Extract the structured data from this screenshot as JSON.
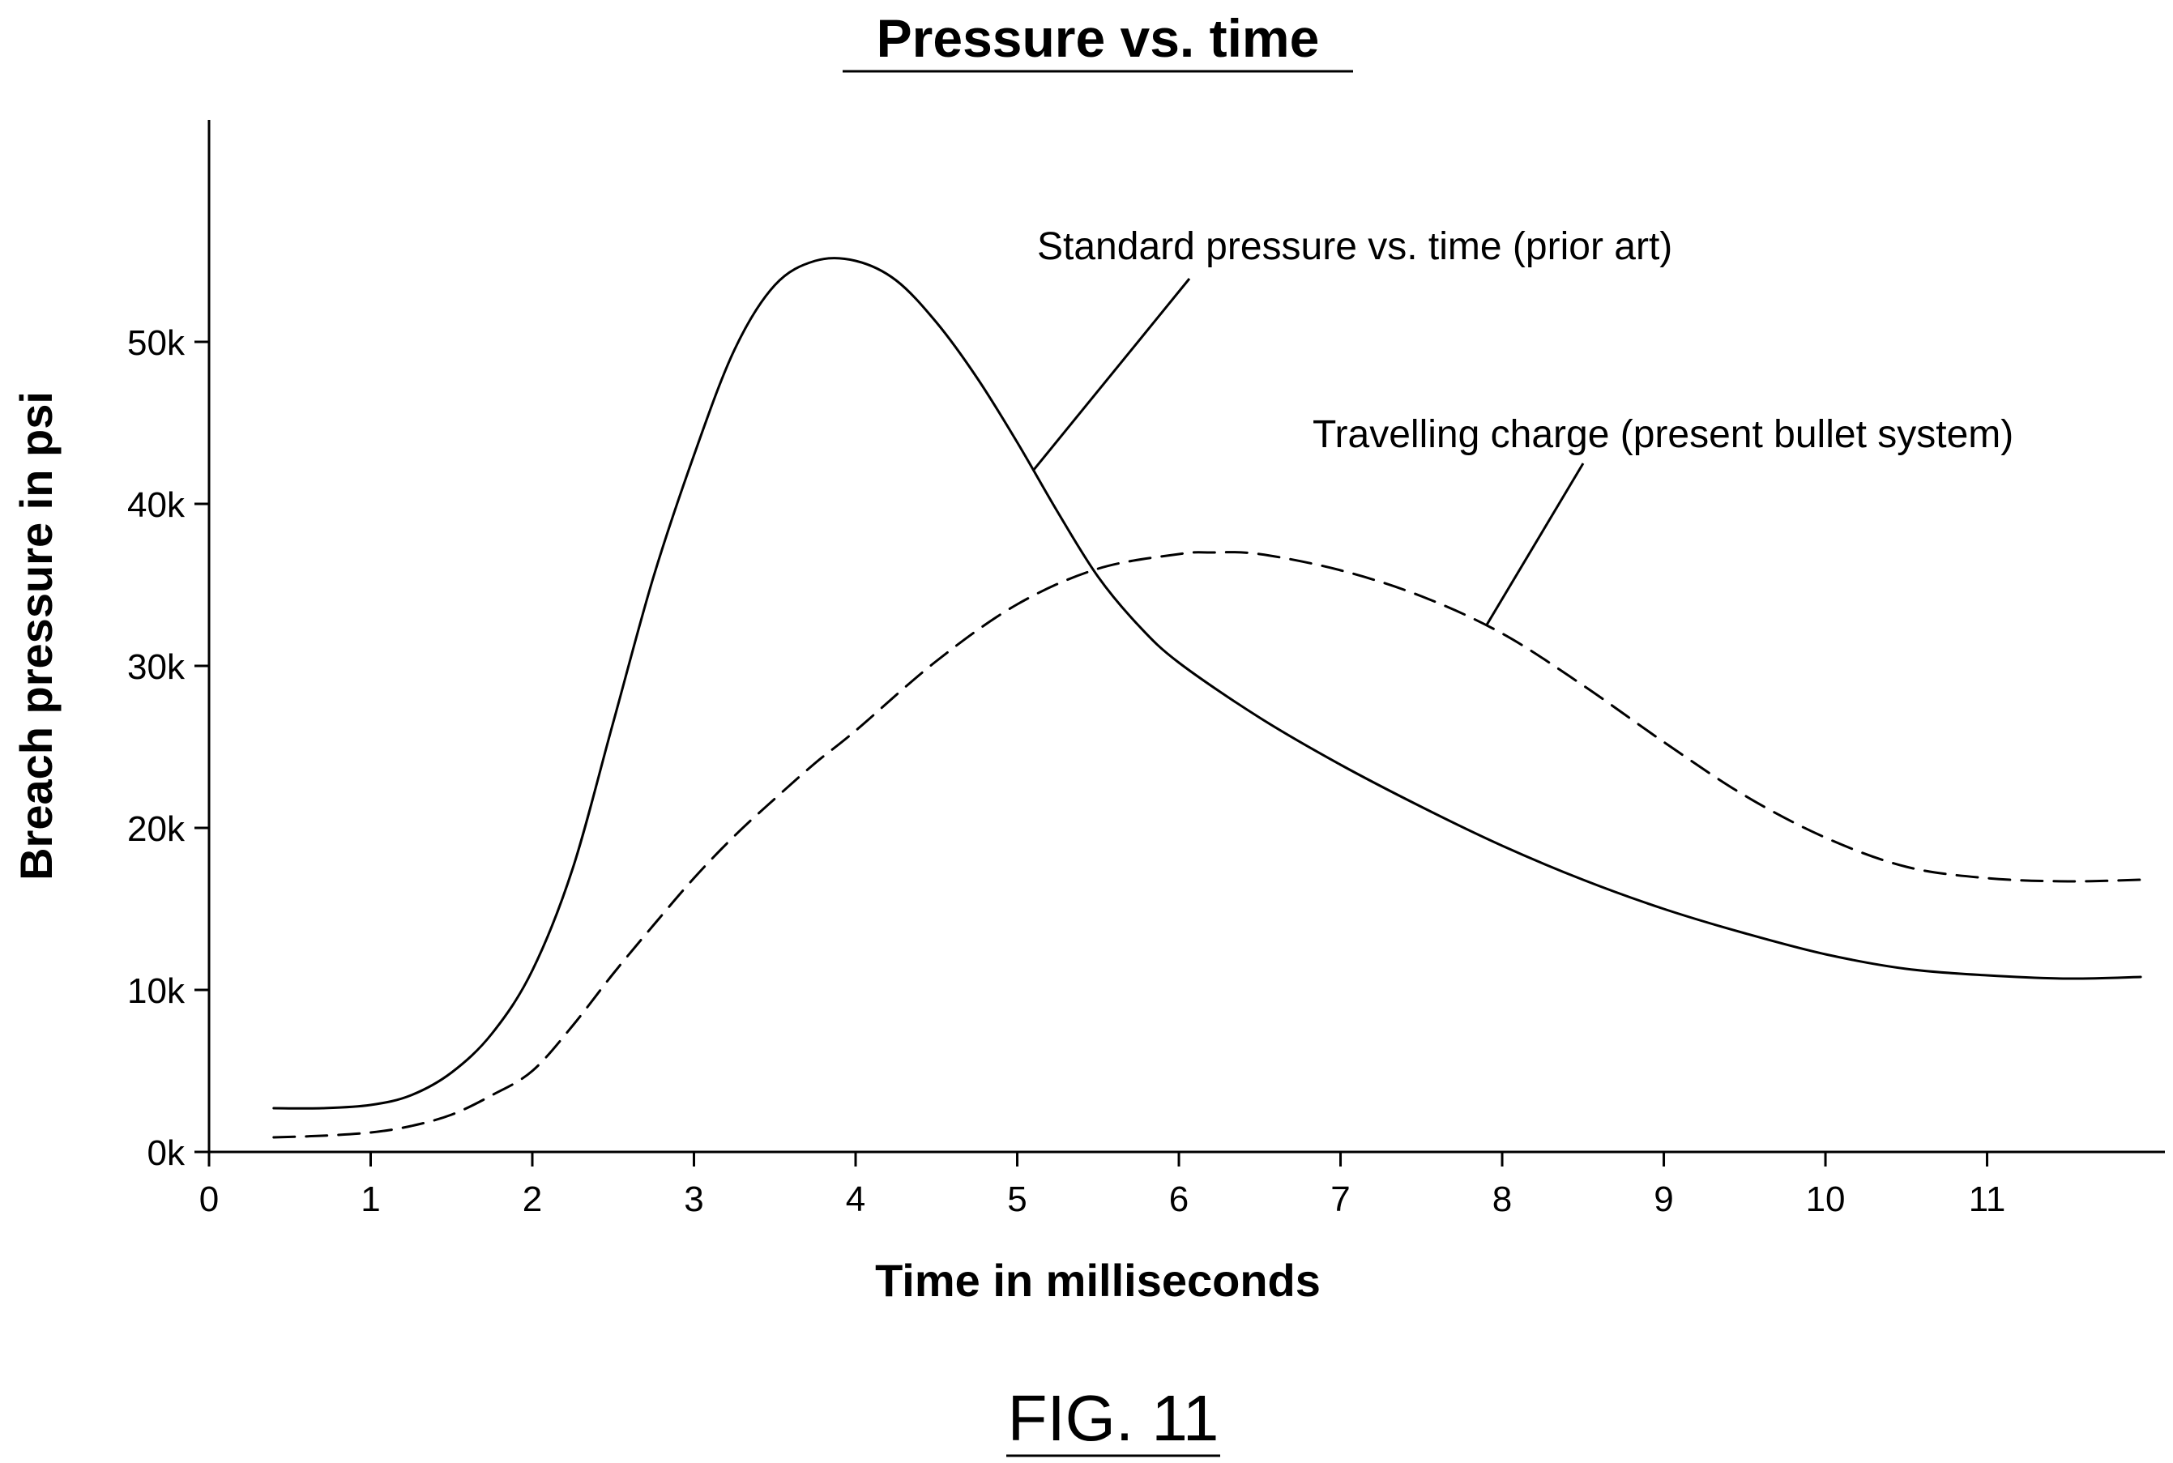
{
  "figure_label": "FIG. 11",
  "chart_data": {
    "type": "line",
    "title": "Pressure vs. time",
    "xlabel": "Time in milliseconds",
    "ylabel": "Breach pressure in psi",
    "xlim": [
      0,
      12.1
    ],
    "ylim": [
      0,
      63700
    ],
    "x_ticks": [
      0,
      1,
      2,
      3,
      4,
      5,
      6,
      7,
      8,
      9,
      10,
      11
    ],
    "x_tick_labels": [
      "0",
      "1",
      "2",
      "3",
      "4",
      "5",
      "6",
      "7",
      "8",
      "9",
      "10",
      "11"
    ],
    "y_ticks": [
      0,
      10000,
      20000,
      30000,
      40000,
      50000
    ],
    "y_tick_labels": [
      "0k",
      "10k",
      "20k",
      "30k",
      "40k",
      "50k"
    ],
    "grid": false,
    "series": [
      {
        "name": "Standard pressure vs. time (prior art)",
        "style": "solid",
        "color": "#000000",
        "x": [
          0.4,
          0.7,
          1.0,
          1.25,
          1.5,
          1.75,
          2.0,
          2.25,
          2.5,
          2.75,
          3.0,
          3.25,
          3.5,
          3.75,
          4.0,
          4.25,
          4.5,
          4.75,
          5.0,
          5.25,
          5.5,
          5.75,
          6.0,
          6.5,
          7.0,
          7.5,
          8.0,
          8.5,
          9.0,
          9.5,
          10.0,
          10.5,
          11.0,
          11.5,
          11.95
        ],
        "y": [
          2700,
          2700,
          2900,
          3500,
          4900,
          7300,
          11200,
          17500,
          26500,
          35500,
          43000,
          49500,
          53500,
          55000,
          55000,
          53800,
          51200,
          47800,
          43800,
          39500,
          35500,
          32500,
          30200,
          26800,
          23900,
          21300,
          18900,
          16800,
          15000,
          13500,
          12200,
          11300,
          10900,
          10700,
          10800
        ]
      },
      {
        "name": "Travelling charge (present bullet system)",
        "style": "dashed",
        "color": "#000000",
        "x": [
          0.4,
          0.7,
          1.0,
          1.25,
          1.5,
          1.75,
          2.0,
          2.25,
          2.5,
          2.75,
          3.0,
          3.25,
          3.5,
          3.75,
          4.0,
          4.5,
          5.0,
          5.5,
          6.0,
          6.2,
          6.5,
          7.0,
          7.5,
          8.0,
          8.5,
          9.0,
          9.5,
          10.0,
          10.5,
          11.0,
          11.5,
          11.95
        ],
        "y": [
          900,
          1000,
          1200,
          1600,
          2300,
          3500,
          5000,
          7800,
          11000,
          14000,
          16900,
          19500,
          21800,
          24000,
          26000,
          30300,
          33800,
          36000,
          36900,
          37000,
          36900,
          35900,
          34300,
          32000,
          28800,
          25300,
          22000,
          19400,
          17600,
          16900,
          16700,
          16800
        ]
      }
    ],
    "annotations": [
      {
        "text": "Standard pressure vs. time (prior art)",
        "series": 0,
        "points_to_x": 5.1
      },
      {
        "text": "Travelling charge (present bullet system)",
        "series": 1,
        "points_to_x": 7.9
      }
    ]
  }
}
